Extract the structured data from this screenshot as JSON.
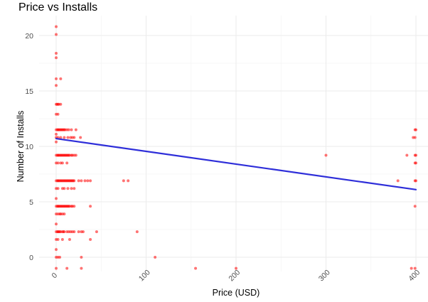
{
  "chart_data": {
    "type": "scatter",
    "title": "Price vs Installs",
    "xlabel": "Price (USD)",
    "ylabel": "Number of Installs",
    "xlim": [
      -2,
      403
    ],
    "ylim": [
      -1,
      21
    ],
    "xticks": [
      0,
      100,
      200,
      300,
      400
    ],
    "yticks": [
      0,
      5,
      10,
      15,
      20
    ],
    "x_tick_labels": [
      "0",
      "100",
      "200",
      "300",
      "400"
    ],
    "y_tick_labels": [
      "0",
      "5",
      "10",
      "15",
      "20"
    ],
    "x_tick_rotation": -45,
    "grid": true,
    "legend": "none",
    "point_color": "#ff0000",
    "point_opacity": 0.55,
    "trend_line": {
      "type": "linear",
      "color": "#2e2ed9",
      "x": [
        0,
        400
      ],
      "y": [
        10.7,
        6.1
      ]
    },
    "points": [
      [
        0,
        20.8
      ],
      [
        0,
        20.1
      ],
      [
        0,
        18.4
      ],
      [
        0,
        18.0
      ],
      [
        0,
        16.1
      ],
      [
        0,
        15.5
      ],
      [
        0,
        13.8
      ],
      [
        0,
        12.9
      ],
      [
        0,
        11.5
      ],
      [
        0,
        11.1
      ],
      [
        0,
        10.8
      ],
      [
        0,
        10.4
      ],
      [
        0,
        9.2
      ],
      [
        0,
        8.5
      ],
      [
        0,
        6.9
      ],
      [
        0,
        6.2
      ],
      [
        0,
        5.3
      ],
      [
        0,
        4.6
      ],
      [
        0,
        3.9
      ],
      [
        0,
        3.0
      ],
      [
        0,
        2.3
      ],
      [
        0,
        1.6
      ],
      [
        0,
        0.7
      ],
      [
        0,
        0.0
      ],
      [
        0,
        -1.0
      ],
      [
        1,
        13.8
      ],
      [
        1.5,
        11.5
      ],
      [
        1.5,
        9.2
      ],
      [
        1.5,
        6.9
      ],
      [
        1.5,
        4.6
      ],
      [
        1.5,
        2.3
      ],
      [
        2,
        13.8
      ],
      [
        2,
        12.9
      ],
      [
        2,
        11.5
      ],
      [
        2,
        10.8
      ],
      [
        2,
        9.2
      ],
      [
        2,
        8.5
      ],
      [
        2,
        6.9
      ],
      [
        2,
        6.2
      ],
      [
        2,
        4.6
      ],
      [
        2,
        3.9
      ],
      [
        2,
        2.3
      ],
      [
        2,
        1.6
      ],
      [
        2,
        0.0
      ],
      [
        3,
        13.8
      ],
      [
        3,
        11.5
      ],
      [
        3,
        9.2
      ],
      [
        3,
        6.9
      ],
      [
        3,
        4.6
      ],
      [
        3,
        2.3
      ],
      [
        4,
        11.5
      ],
      [
        4,
        9.2
      ],
      [
        4,
        6.9
      ],
      [
        4,
        4.6
      ],
      [
        4,
        3.9
      ],
      [
        4,
        2.3
      ],
      [
        4,
        0.0
      ],
      [
        5,
        16.1
      ],
      [
        5,
        13.8
      ],
      [
        5,
        11.5
      ],
      [
        5,
        10.8
      ],
      [
        5,
        9.2
      ],
      [
        5,
        8.5
      ],
      [
        5,
        6.9
      ],
      [
        5,
        4.6
      ],
      [
        5,
        3.9
      ],
      [
        5,
        2.3
      ],
      [
        6,
        11.5
      ],
      [
        6,
        9.2
      ],
      [
        6,
        6.9
      ],
      [
        6,
        4.6
      ],
      [
        7,
        11.5
      ],
      [
        7,
        9.2
      ],
      [
        7,
        8.5
      ],
      [
        7,
        6.9
      ],
      [
        7,
        6.2
      ],
      [
        7,
        4.6
      ],
      [
        7,
        3.9
      ],
      [
        7,
        2.3
      ],
      [
        7,
        1.6
      ],
      [
        8,
        11.5
      ],
      [
        8,
        9.2
      ],
      [
        8,
        6.9
      ],
      [
        8,
        4.6
      ],
      [
        8,
        2.3
      ],
      [
        9,
        11.5
      ],
      [
        9,
        10.8
      ],
      [
        9,
        9.2
      ],
      [
        9,
        6.9
      ],
      [
        9,
        6.2
      ],
      [
        9,
        4.6
      ],
      [
        9,
        3.9
      ],
      [
        9,
        2.3
      ],
      [
        10,
        11.5
      ],
      [
        10,
        9.2
      ],
      [
        10,
        6.9
      ],
      [
        10,
        4.6
      ],
      [
        11,
        9.2
      ],
      [
        11,
        6.9
      ],
      [
        11,
        4.6
      ],
      [
        12,
        11.5
      ],
      [
        12,
        9.2
      ],
      [
        12,
        8.5
      ],
      [
        12,
        6.9
      ],
      [
        12,
        4.6
      ],
      [
        12,
        2.3
      ],
      [
        12,
        -1.0
      ],
      [
        13,
        10.8
      ],
      [
        13,
        9.2
      ],
      [
        13,
        6.9
      ],
      [
        13,
        6.2
      ],
      [
        13,
        4.6
      ],
      [
        14,
        11.5
      ],
      [
        14,
        9.2
      ],
      [
        14,
        6.9
      ],
      [
        14,
        4.6
      ],
      [
        14,
        2.3
      ],
      [
        15,
        9.2
      ],
      [
        15,
        6.9
      ],
      [
        15,
        4.6
      ],
      [
        15,
        1.6
      ],
      [
        16,
        10.8
      ],
      [
        16,
        6.9
      ],
      [
        16,
        2.3
      ],
      [
        17,
        11.5
      ],
      [
        17,
        9.2
      ],
      [
        17,
        6.9
      ],
      [
        17,
        6.2
      ],
      [
        17,
        4.6
      ],
      [
        18,
        10.8
      ],
      [
        18,
        9.2
      ],
      [
        18,
        6.9
      ],
      [
        18,
        4.6
      ],
      [
        18,
        2.3
      ],
      [
        19,
        6.9
      ],
      [
        20,
        10.8
      ],
      [
        20,
        9.2
      ],
      [
        20,
        6.9
      ],
      [
        20,
        6.2
      ],
      [
        20,
        4.6
      ],
      [
        20,
        2.3
      ],
      [
        22,
        11.5
      ],
      [
        22,
        9.2
      ],
      [
        25,
        6.9
      ],
      [
        25,
        2.3
      ],
      [
        27,
        10.8
      ],
      [
        28,
        6.9
      ],
      [
        28,
        2.3
      ],
      [
        28,
        0.0
      ],
      [
        28,
        -1.0
      ],
      [
        30,
        2.3
      ],
      [
        32,
        6.9
      ],
      [
        35,
        6.9
      ],
      [
        38,
        6.9
      ],
      [
        38,
        4.6
      ],
      [
        38,
        1.6
      ],
      [
        45,
        2.3
      ],
      [
        75,
        6.9
      ],
      [
        80,
        6.9
      ],
      [
        90,
        2.3
      ],
      [
        110,
        0.0
      ],
      [
        155,
        -1.0
      ],
      [
        200,
        -1.0
      ],
      [
        300,
        9.2
      ],
      [
        380,
        6.9
      ],
      [
        390,
        9.2
      ],
      [
        395,
        -1.0
      ],
      [
        397,
        10.8
      ],
      [
        399,
        11.5
      ],
      [
        399,
        10.8
      ],
      [
        399,
        9.2
      ],
      [
        399,
        8.5
      ],
      [
        399,
        6.9
      ],
      [
        399,
        4.6
      ],
      [
        399,
        -1.0
      ],
      [
        400,
        11.5
      ],
      [
        400,
        9.2
      ],
      [
        400,
        8.5
      ],
      [
        400,
        6.9
      ]
    ]
  }
}
